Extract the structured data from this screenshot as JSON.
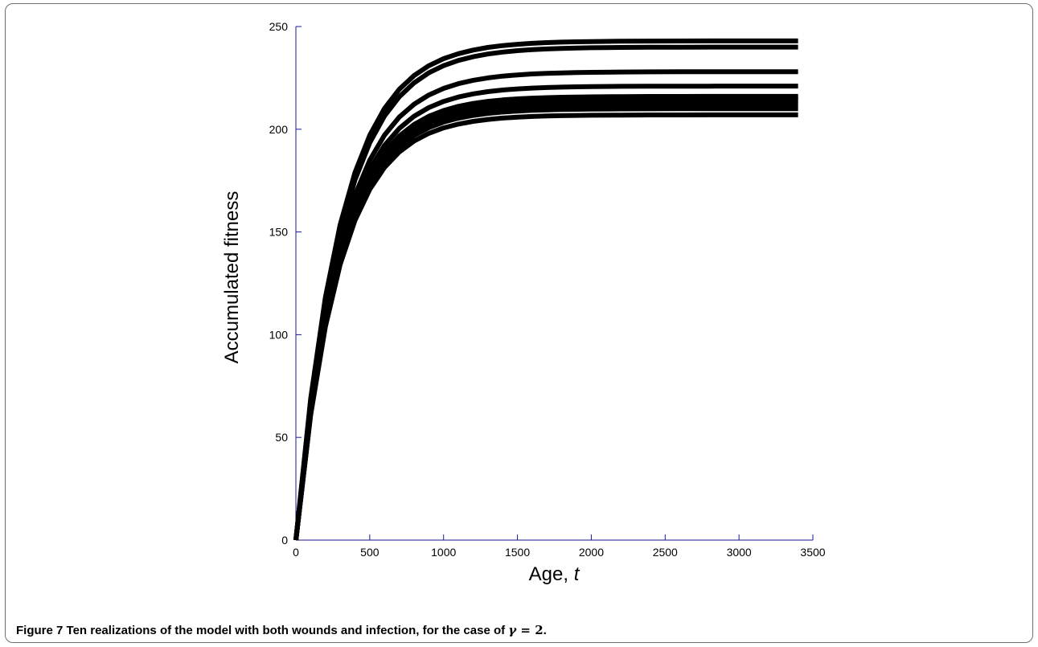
{
  "chart_data": {
    "type": "line",
    "title": "",
    "xlabel_text": "Age, ",
    "xlabel_var": "t",
    "ylabel": "Accumulated fitness",
    "xlim": [
      0,
      3500
    ],
    "ylim": [
      0,
      250
    ],
    "xticks": [
      "0",
      "500",
      "1000",
      "1500",
      "2000",
      "2500",
      "3000",
      "3500"
    ],
    "yticks": [
      "0",
      "50",
      "100",
      "150",
      "200",
      "250"
    ],
    "x_end": 3400,
    "grid": false,
    "legend": "none",
    "line_color": "#000000",
    "axis_color": "#1a1a99",
    "x": [
      0,
      100,
      200,
      300,
      400,
      500,
      600,
      700,
      800,
      900,
      1000,
      1100,
      1200,
      1300,
      1400,
      1500,
      1600,
      1700,
      1800,
      1900,
      2000,
      2200,
      2400,
      2600,
      2800,
      3000,
      3200,
      3400
    ],
    "series": [
      {
        "plateau": 243,
        "timescale": 300
      },
      {
        "plateau": 240,
        "timescale": 305
      },
      {
        "plateau": 228,
        "timescale": 300
      },
      {
        "plateau": 221,
        "timescale": 295
      },
      {
        "plateau": 216,
        "timescale": 290
      },
      {
        "plateau": 215,
        "timescale": 288
      },
      {
        "plateau": 214,
        "timescale": 292
      },
      {
        "plateau": 212,
        "timescale": 290
      },
      {
        "plateau": 210,
        "timescale": 288
      },
      {
        "plateau": 207,
        "timescale": 287
      }
    ]
  },
  "caption": {
    "label": "Figure 7",
    "text": " Ten realizations of the model with both wounds and infection, for the case of ",
    "math_var": "γ",
    "math_rest": " = 2",
    "end": "."
  }
}
